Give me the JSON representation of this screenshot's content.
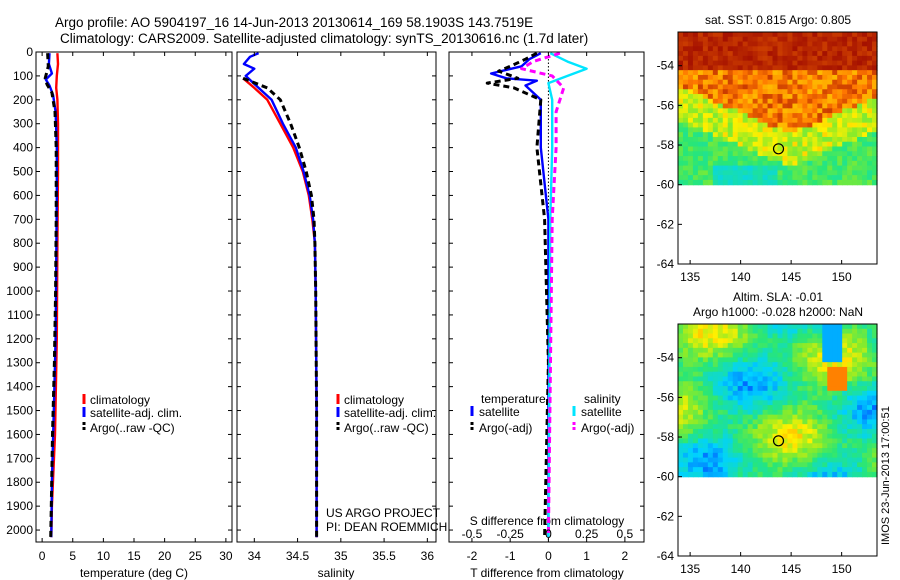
{
  "header": {
    "line1": "Argo profile: AO 5904197_16 14-Jun-2013 20130614_169 58.1903S 143.7519E",
    "line2": "Climatology: CARS2009. Satellite-adjusted climatology: synTS_20130616.nc (1.7d later)"
  },
  "colors": {
    "climatology": "#ff0000",
    "satellite": "#0000ff",
    "argo": "#000000",
    "sat_salinity": "#00e5ff",
    "argo_salinity": "#ff00ff"
  },
  "side_text": "IMOS 23-Jun-2013 17:00:51",
  "project": {
    "line1": "US ARGO PROJECT",
    "line2": "PI: DEAN ROEMMICH"
  },
  "chart_data": [
    {
      "type": "line",
      "xlabel": "temperature (deg C)",
      "xlim": [
        -1,
        31
      ],
      "xticks": [
        0,
        5,
        10,
        15,
        20,
        25,
        30
      ],
      "ylim": [
        0,
        2050
      ],
      "yticks": [
        0,
        100,
        200,
        300,
        400,
        500,
        600,
        700,
        800,
        900,
        1000,
        1100,
        1200,
        1300,
        1400,
        1500,
        1600,
        1700,
        1800,
        1900,
        2000
      ],
      "legend": [
        "climatology",
        "satellite-adj. clim.",
        "Argo(..raw -QC)"
      ],
      "legend_position": "lower-right",
      "series": [
        {
          "name": "climatology",
          "color": "#ff0000",
          "points": [
            [
              2.5,
              5
            ],
            [
              2.6,
              50
            ],
            [
              2.4,
              100
            ],
            [
              2.3,
              150
            ],
            [
              2.5,
              200
            ],
            [
              2.6,
              300
            ],
            [
              2.6,
              500
            ],
            [
              2.5,
              800
            ],
            [
              2.4,
              1200
            ],
            [
              2.1,
              1600
            ],
            [
              1.6,
              1900
            ],
            [
              1.5,
              2030
            ]
          ]
        },
        {
          "name": "satellite-adj. clim.",
          "color": "#0000ff",
          "points": [
            [
              1.2,
              5
            ],
            [
              1.1,
              50
            ],
            [
              1.6,
              90
            ],
            [
              0.6,
              115
            ],
            [
              1.2,
              140
            ],
            [
              1.8,
              180
            ],
            [
              2.2,
              250
            ],
            [
              2.4,
              400
            ],
            [
              2.4,
              600
            ],
            [
              2.3,
              900
            ],
            [
              2.2,
              1200
            ],
            [
              1.9,
              1500
            ],
            [
              1.6,
              1800
            ],
            [
              1.5,
              2030
            ]
          ]
        },
        {
          "name": "Argo(..raw -QC)",
          "color": "#000000",
          "points": [
            [
              0.9,
              5
            ],
            [
              1.0,
              60
            ],
            [
              0.5,
              110
            ],
            [
              0.8,
              135
            ],
            [
              1.6,
              170
            ],
            [
              2.1,
              250
            ],
            [
              2.3,
              400
            ],
            [
              2.3,
              700
            ],
            [
              2.2,
              1000
            ],
            [
              2.0,
              1300
            ],
            [
              1.7,
              1600
            ],
            [
              1.5,
              1900
            ],
            [
              1.4,
              2030
            ]
          ]
        }
      ]
    },
    {
      "type": "line",
      "xlabel": "salinity",
      "xlim": [
        33.8,
        36.1
      ],
      "xticks": [
        34,
        34.5,
        35,
        35.5,
        36
      ],
      "ylim": [
        0,
        2050
      ],
      "legend": [
        "climatology",
        "satellite-adj. clim.",
        "Argo(..raw -QC)"
      ],
      "legend_position": "lower-right",
      "series": [
        {
          "name": "climatology",
          "color": "#ff0000",
          "points": [
            [
              33.87,
              110
            ],
            [
              34.0,
              150
            ],
            [
              34.15,
              200
            ],
            [
              34.3,
              300
            ],
            [
              34.45,
              400
            ],
            [
              34.56,
              500
            ],
            [
              34.63,
              600
            ],
            [
              34.67,
              700
            ],
            [
              34.7,
              800
            ],
            [
              34.71,
              1000
            ],
            [
              34.72,
              1500
            ],
            [
              34.72,
              2030
            ]
          ]
        },
        {
          "name": "satellite-adj. clim.",
          "color": "#0000ff",
          "points": [
            [
              34.05,
              5
            ],
            [
              33.95,
              20
            ],
            [
              33.88,
              50
            ],
            [
              34.0,
              70
            ],
            [
              33.9,
              100
            ],
            [
              34.05,
              150
            ],
            [
              34.2,
              200
            ],
            [
              34.33,
              300
            ],
            [
              34.48,
              400
            ],
            [
              34.57,
              500
            ],
            [
              34.64,
              600
            ],
            [
              34.68,
              700
            ],
            [
              34.7,
              800
            ],
            [
              34.71,
              1000
            ],
            [
              34.72,
              1500
            ],
            [
              34.72,
              2030
            ]
          ]
        },
        {
          "name": "Argo(..raw -QC)",
          "color": "#000000",
          "points": [
            [
              33.87,
              110
            ],
            [
              34.15,
              150
            ],
            [
              34.3,
              200
            ],
            [
              34.42,
              300
            ],
            [
              34.52,
              400
            ],
            [
              34.6,
              500
            ],
            [
              34.66,
              600
            ],
            [
              34.69,
              700
            ],
            [
              34.7,
              800
            ],
            [
              34.71,
              1000
            ],
            [
              34.72,
              1500
            ],
            [
              34.72,
              2030
            ]
          ]
        }
      ]
    },
    {
      "type": "line",
      "xlabel": "T difference from climatology",
      "xlabel_top": "S difference from climatology",
      "xlim": [
        -2.6,
        2.5
      ],
      "xticks": [
        -2,
        -1,
        0,
        1,
        2
      ],
      "xticks_top_values": [
        -2,
        -1,
        0,
        1,
        2
      ],
      "xticks_top_labels": [
        "-0.5",
        "-0.25",
        "0",
        "0.25",
        "0.5"
      ],
      "ylim": [
        0,
        2050
      ],
      "legend_titles": [
        "temperature",
        "salinity"
      ],
      "legend": [
        "satellite",
        "Argo(-adj)",
        "satellite",
        "Argo(-adj)"
      ],
      "series": [
        {
          "name": "temperature satellite",
          "color": "#0000ff",
          "points": [
            [
              -0.2,
              5
            ],
            [
              -0.5,
              30
            ],
            [
              -0.7,
              60
            ],
            [
              -1.5,
              90
            ],
            [
              -1.1,
              110
            ],
            [
              -0.3,
              120
            ],
            [
              -0.6,
              140
            ],
            [
              -0.2,
              200
            ],
            [
              -0.2,
              400
            ],
            [
              0,
              700
            ],
            [
              0,
              2030
            ]
          ]
        },
        {
          "name": "temperature Argo(-adj)",
          "color": "#000000",
          "points": [
            [
              -0.3,
              5
            ],
            [
              -0.6,
              30
            ],
            [
              -1.0,
              60
            ],
            [
              -1.3,
              80
            ],
            [
              -0.8,
              110
            ],
            [
              -1.6,
              130
            ],
            [
              -0.9,
              150
            ],
            [
              -0.2,
              200
            ],
            [
              -0.3,
              400
            ],
            [
              -0.1,
              700
            ],
            [
              0,
              1300
            ],
            [
              -0.1,
              2030
            ]
          ]
        },
        {
          "name": "salinity satellite",
          "color": "#00e5ff",
          "points": [
            [
              0.05,
              5
            ],
            [
              0.5,
              40
            ],
            [
              1.0,
              70
            ],
            [
              0.5,
              100
            ],
            [
              0.0,
              130
            ],
            [
              0.1,
              200
            ],
            [
              0.1,
              400
            ],
            [
              0.05,
              700
            ],
            [
              0,
              2030
            ]
          ]
        },
        {
          "name": "salinity Argo(-adj)",
          "color": "#ff00ff",
          "points": [
            [
              0.3,
              5
            ],
            [
              -0.4,
              40
            ],
            [
              -0.7,
              70
            ],
            [
              0.1,
              100
            ],
            [
              0.4,
              150
            ],
            [
              0.2,
              250
            ],
            [
              0.2,
              400
            ],
            [
              0.1,
              700
            ],
            [
              0,
              2030
            ]
          ]
        }
      ]
    },
    {
      "type": "heatmap",
      "title": "sat. SST: 0.815 Argo: 0.805",
      "xlim": [
        133.8,
        153.5
      ],
      "xticks": [
        135,
        140,
        145,
        150
      ],
      "ylim": [
        -64,
        -52.3
      ],
      "yticks": [
        -54,
        -56,
        -58,
        -60,
        -62,
        -64
      ],
      "data_lat_range": [
        -60,
        -52.3
      ],
      "marker": [
        143.75,
        -58.19
      ]
    },
    {
      "type": "heatmap",
      "title_lines": [
        "Altim. SLA: -0.01",
        "Argo h1000: -0.028 h2000: NaN"
      ],
      "xlim": [
        133.8,
        153.5
      ],
      "xticks": [
        135,
        140,
        145,
        150
      ],
      "ylim": [
        -64,
        -52.3
      ],
      "yticks": [
        -54,
        -56,
        -58,
        -60,
        -62,
        -64
      ],
      "data_lat_range": [
        -60,
        -52.3
      ],
      "marker": [
        143.75,
        -58.19
      ]
    }
  ]
}
